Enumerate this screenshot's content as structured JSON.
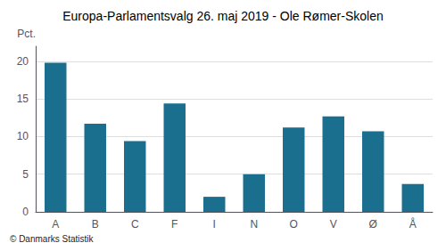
{
  "chart_data": {
    "type": "bar",
    "title": "Europa-Parlamentsvalg 26. maj 2019 - Ole Rømer-Skolen",
    "ylabel": "Pct.",
    "footer": "© Danmarks Statistik",
    "categories": [
      "A",
      "B",
      "C",
      "F",
      "I",
      "N",
      "O",
      "V",
      "Ø",
      "Å"
    ],
    "values": [
      19.8,
      11.7,
      9.4,
      14.4,
      2.0,
      5.0,
      11.2,
      12.7,
      10.7,
      3.7
    ],
    "color": "#1a6e8e",
    "ylim": [
      0,
      22
    ],
    "yticks": [
      0,
      5,
      10,
      15,
      20
    ],
    "grid": true
  }
}
